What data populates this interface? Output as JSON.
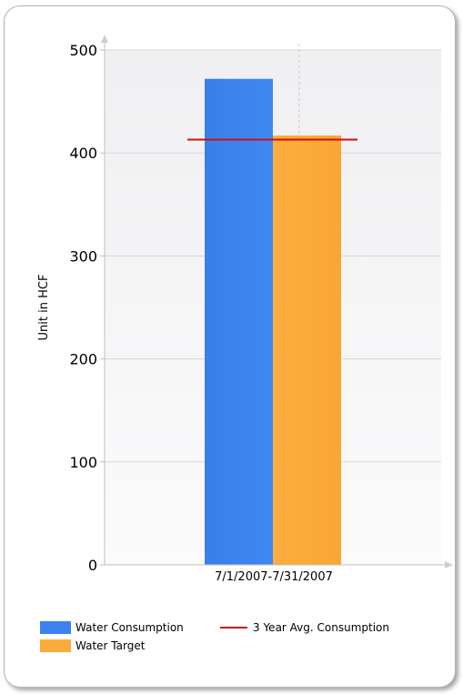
{
  "chart_data": {
    "type": "bar",
    "categories": [
      "7/1/2007-7/31/2007"
    ],
    "series": [
      {
        "name": "Water Consumption",
        "values": [
          472
        ],
        "color": "#3b82ee"
      },
      {
        "name": "Water Target",
        "values": [
          417
        ],
        "color": "#fbab3c"
      }
    ],
    "reference_line": {
      "name": "3 Year Avg. Consumption",
      "value": 413,
      "color": "#cc1111"
    },
    "ylabel": "Unit in HCF",
    "xlabel": "",
    "ylim": [
      0,
      500
    ],
    "yticks": [
      0,
      100,
      200,
      300,
      400,
      500
    ],
    "grid": true,
    "legend_position": "bottom"
  }
}
